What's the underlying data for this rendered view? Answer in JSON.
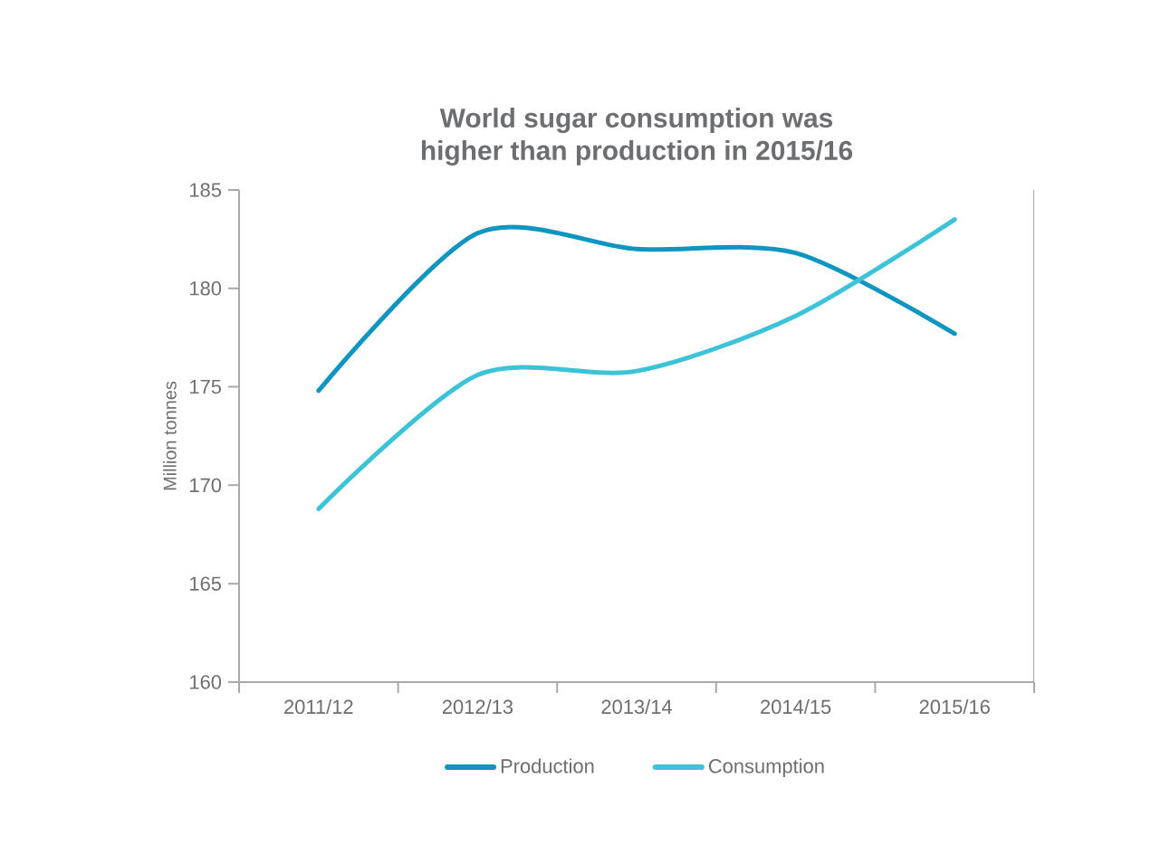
{
  "chart_data": {
    "type": "line",
    "title": "World sugar consumption was\nhigher than production in 2015/16",
    "ylabel": "Million tonnes",
    "categories": [
      "2011/12",
      "2012/13",
      "2013/14",
      "2014/15",
      "2015/16"
    ],
    "series": [
      {
        "name": "Production",
        "color": "#0e95c0",
        "values": [
          174.8,
          182.8,
          182.0,
          181.8,
          177.7
        ]
      },
      {
        "name": "Consumption",
        "color": "#3cc3d8",
        "values": [
          168.8,
          175.6,
          175.8,
          178.6,
          183.5
        ]
      }
    ],
    "ylim": [
      160,
      185
    ],
    "yticks": [
      160,
      165,
      170,
      175,
      180,
      185
    ],
    "grid": false,
    "legend": "bottom",
    "marker": "none",
    "line_style": "solid"
  }
}
